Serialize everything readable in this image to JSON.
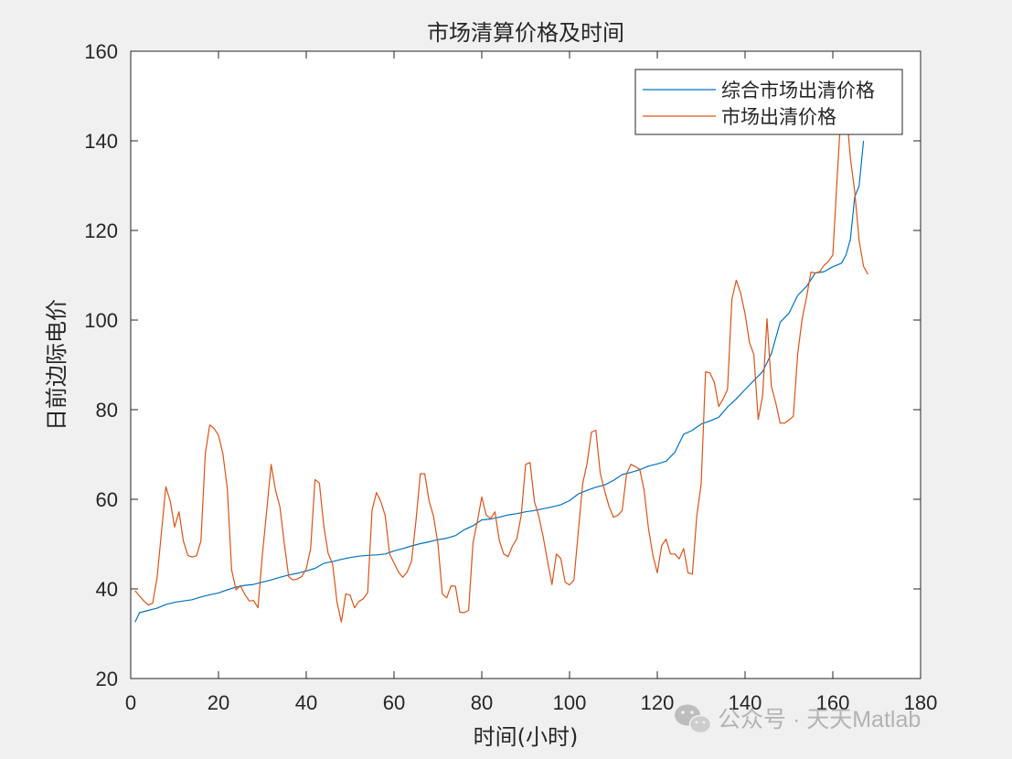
{
  "chart_data": {
    "type": "line",
    "title": "市场清算价格及时间",
    "xlabel": "时间(小时)",
    "ylabel": "日前边际电价",
    "xlim": [
      0,
      180
    ],
    "ylim": [
      20,
      160
    ],
    "xticks": [
      0,
      20,
      40,
      60,
      80,
      100,
      120,
      140,
      160,
      180
    ],
    "yticks": [
      20,
      40,
      60,
      80,
      100,
      120,
      140,
      160
    ],
    "grid": false,
    "legend_position": "top-right",
    "series": [
      {
        "name": "综合市场出清价格",
        "color": "#0072BD",
        "x": [
          1,
          2,
          4,
          6,
          8,
          10,
          12,
          14,
          16,
          18,
          20,
          22,
          24,
          26,
          28,
          30,
          32,
          34,
          36,
          38,
          40,
          42,
          44,
          46,
          48,
          50,
          52,
          54,
          56,
          58,
          60,
          62,
          64,
          66,
          68,
          70,
          72,
          74,
          76,
          78,
          80,
          82,
          84,
          86,
          88,
          90,
          92,
          94,
          96,
          98,
          100,
          102,
          104,
          106,
          108,
          110,
          112,
          114,
          116,
          118,
          120,
          122,
          124,
          126,
          128,
          130,
          132,
          134,
          136,
          138,
          140,
          142,
          144,
          146,
          148,
          150,
          152,
          154,
          156,
          158,
          160,
          162,
          163,
          164,
          165,
          166,
          167
        ],
        "y": [
          32.6,
          34.7,
          35.2,
          35.7,
          36.5,
          37.0,
          37.3,
          37.6,
          38.2,
          38.7,
          39.1,
          39.8,
          40.4,
          40.8,
          41.0,
          41.5,
          42.0,
          42.6,
          43.1,
          43.5,
          44.0,
          44.6,
          45.7,
          46.1,
          46.6,
          47.0,
          47.3,
          47.5,
          47.6,
          47.8,
          48.5,
          49.0,
          49.6,
          50.1,
          50.5,
          51.0,
          51.3,
          51.9,
          53.2,
          54.1,
          55.4,
          55.6,
          56.0,
          56.5,
          56.8,
          57.2,
          57.5,
          57.9,
          58.3,
          58.8,
          59.7,
          61.2,
          62.0,
          62.7,
          63.2,
          64.2,
          65.5,
          66.0,
          66.6,
          67.4,
          67.9,
          68.5,
          70.5,
          74.5,
          75.4,
          76.8,
          77.5,
          78.3,
          80.6,
          82.4,
          84.5,
          86.5,
          88.5,
          92.5,
          99.5,
          101.5,
          105.5,
          107.5,
          110.5,
          110.8,
          111.9,
          112.7,
          114.5,
          118.0,
          127.5,
          130.0,
          140.0
        ]
      },
      {
        "name": "市场出清价格",
        "color": "#D95319",
        "x": [
          1,
          2,
          3,
          4,
          5,
          6,
          7,
          8,
          9,
          10,
          11,
          12,
          13,
          14,
          15,
          16,
          17,
          18,
          19,
          20,
          21,
          22,
          23,
          24,
          25,
          26,
          27,
          28,
          29,
          30,
          31,
          32,
          33,
          34,
          35,
          36,
          37,
          38,
          39,
          40,
          41,
          42,
          43,
          44,
          45,
          46,
          47,
          48,
          49,
          50,
          51,
          52,
          53,
          54,
          55,
          56,
          57,
          58,
          59,
          60,
          61,
          62,
          63,
          64,
          65,
          66,
          67,
          68,
          69,
          70,
          71,
          72,
          73,
          74,
          75,
          76,
          77,
          78,
          79,
          80,
          81,
          82,
          83,
          84,
          85,
          86,
          87,
          88,
          89,
          90,
          91,
          92,
          93,
          94,
          95,
          96,
          97,
          98,
          99,
          100,
          101,
          102,
          103,
          104,
          105,
          106,
          107,
          108,
          109,
          110,
          111,
          112,
          113,
          114,
          115,
          116,
          117,
          118,
          119,
          120,
          121,
          122,
          123,
          124,
          125,
          126,
          127,
          128,
          129,
          130,
          131,
          132,
          133,
          134,
          135,
          136,
          137,
          138,
          139,
          140,
          141,
          142,
          143,
          144,
          145,
          146,
          147,
          148,
          149,
          150,
          151,
          152,
          153,
          154,
          155,
          156,
          157,
          158,
          159,
          160,
          161,
          162,
          163,
          164,
          165,
          166,
          167,
          168
        ],
        "y": [
          39.6,
          38.4,
          37.3,
          36.4,
          36.8,
          42.5,
          52.6,
          62.8,
          59.6,
          53.8,
          57.2,
          50.7,
          47.5,
          47.1,
          47.4,
          50.7,
          70.2,
          76.6,
          75.8,
          74.3,
          70.2,
          62.5,
          44.2,
          39.8,
          40.7,
          38.8,
          37.3,
          37.4,
          35.8,
          47.6,
          57.6,
          67.8,
          62.0,
          58.3,
          50.1,
          42.7,
          42.0,
          42.2,
          42.8,
          44.5,
          49.0,
          64.4,
          63.6,
          54.0,
          47.9,
          45.6,
          37.1,
          32.6,
          38.9,
          38.6,
          35.8,
          37.2,
          37.8,
          39.2,
          57.6,
          61.5,
          59.5,
          56.3,
          47.8,
          45.8,
          43.8,
          42.6,
          43.8,
          46.2,
          55.2,
          65.7,
          65.7,
          59.6,
          56.2,
          50.2,
          38.9,
          38.0,
          40.7,
          40.6,
          34.8,
          34.7,
          35.2,
          50.3,
          55.1,
          60.5,
          56.5,
          55.7,
          57.2,
          50.8,
          47.8,
          47.2,
          49.6,
          51.2,
          56.5,
          67.8,
          68.2,
          59.5,
          56.2,
          51.6,
          46.1,
          41.0,
          47.8,
          46.8,
          41.5,
          40.9,
          42.0,
          52.8,
          63.5,
          68.0,
          75.0,
          75.4,
          65.8,
          61.9,
          58.4,
          56.0,
          56.4,
          57.5,
          65.7,
          67.8,
          67.3,
          66.7,
          62.0,
          53.4,
          47.5,
          43.6,
          49.7,
          51.1,
          47.8,
          47.8,
          46.7,
          49.0,
          43.6,
          43.3,
          56.3,
          63.4,
          88.5,
          88.2,
          86.1,
          80.7,
          82.4,
          84.5,
          104.6,
          108.9,
          106.0,
          101.4,
          95.0,
          92.3,
          77.8,
          83.1,
          100.3,
          85.2,
          81.5,
          77.0,
          77.0,
          77.7,
          78.5,
          92.5,
          100.2,
          105.0,
          110.7,
          110.5,
          110.8,
          112.2,
          113.1,
          114.5,
          132.0,
          148.5,
          147.9,
          136.2,
          128.6,
          117.7,
          112.0,
          110.2
        ]
      }
    ]
  },
  "watermark": {
    "text": "公众号 · 天天Matlab",
    "icon": "wechat-logo-icon"
  }
}
